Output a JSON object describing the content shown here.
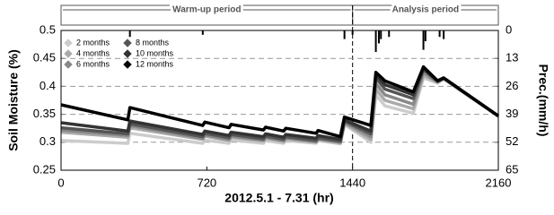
{
  "chart_data": {
    "type": "line",
    "xlabel": "2012.5.1 - 7.31 (hr)",
    "ylabel": "Soil Moisture (%)",
    "y2label": "Prec.(mm/h)",
    "xlim": [
      0,
      2160
    ],
    "xticks": [
      0,
      720,
      1440,
      2160
    ],
    "ylim": [
      0.25,
      0.5
    ],
    "yticks": [
      0.25,
      0.3,
      0.35,
      0.4,
      0.45,
      0.5
    ],
    "y2lim": [
      0,
      65
    ],
    "y2ticks": [
      0,
      13,
      26,
      39,
      52,
      65
    ],
    "y2_inverted": true,
    "grid": true,
    "legend": "upper left",
    "periods": [
      {
        "label": "Warm-up period",
        "start": 0,
        "end": 1440
      },
      {
        "label": "Analysis period",
        "start": 1440,
        "end": 2160
      }
    ],
    "x": [
      0,
      330,
      340,
      700,
      710,
      830,
      840,
      1000,
      1010,
      1100,
      1110,
      1260,
      1270,
      1380,
      1400,
      1530,
      1555,
      1600,
      1740,
      1790,
      1860,
      1890,
      2160
    ],
    "series": [
      {
        "name": "2 months",
        "color": "#cccccc",
        "values": [
          0.303,
          0.298,
          0.316,
          0.298,
          0.304,
          0.298,
          0.304,
          0.298,
          0.303,
          0.298,
          0.303,
          0.298,
          0.303,
          0.297,
          0.332,
          0.3,
          0.385,
          0.365,
          0.352,
          0.415,
          0.406,
          0.413,
          0.347
        ]
      },
      {
        "name": "4 months",
        "color": "#aaaaaa",
        "values": [
          0.318,
          0.309,
          0.326,
          0.305,
          0.311,
          0.303,
          0.309,
          0.302,
          0.307,
          0.301,
          0.306,
          0.3,
          0.305,
          0.299,
          0.334,
          0.305,
          0.395,
          0.375,
          0.36,
          0.42,
          0.407,
          0.414,
          0.347
        ]
      },
      {
        "name": "6 months",
        "color": "#888888",
        "values": [
          0.322,
          0.312,
          0.33,
          0.307,
          0.313,
          0.305,
          0.311,
          0.304,
          0.309,
          0.303,
          0.308,
          0.301,
          0.306,
          0.3,
          0.336,
          0.31,
          0.405,
          0.385,
          0.368,
          0.425,
          0.408,
          0.414,
          0.347
        ]
      },
      {
        "name": "8 months",
        "color": "#555555",
        "values": [
          0.326,
          0.315,
          0.333,
          0.31,
          0.316,
          0.308,
          0.314,
          0.306,
          0.311,
          0.305,
          0.31,
          0.303,
          0.308,
          0.302,
          0.338,
          0.315,
          0.415,
          0.395,
          0.378,
          0.43,
          0.409,
          0.415,
          0.347
        ]
      },
      {
        "name": "10 months",
        "color": "#333333",
        "values": [
          0.335,
          0.32,
          0.338,
          0.314,
          0.32,
          0.312,
          0.318,
          0.31,
          0.315,
          0.309,
          0.314,
          0.307,
          0.312,
          0.305,
          0.34,
          0.32,
          0.42,
          0.403,
          0.385,
          0.432,
          0.41,
          0.415,
          0.347
        ]
      },
      {
        "name": "12 months",
        "color": "#000000",
        "values": [
          0.367,
          0.34,
          0.362,
          0.33,
          0.336,
          0.326,
          0.332,
          0.322,
          0.327,
          0.32,
          0.325,
          0.316,
          0.321,
          0.31,
          0.345,
          0.33,
          0.425,
          0.41,
          0.39,
          0.435,
          0.41,
          0.415,
          0.347
        ]
      }
    ],
    "precipitation": {
      "type": "bar",
      "axis": "y2",
      "color": "#000000",
      "x": [
        340,
        700,
        1400,
        1440,
        1555,
        1570,
        1580,
        1620,
        1790,
        1800,
        1870,
        1890
      ],
      "values": [
        3,
        2,
        4,
        2,
        10,
        6,
        4,
        3,
        9,
        5,
        3,
        4
      ]
    }
  }
}
